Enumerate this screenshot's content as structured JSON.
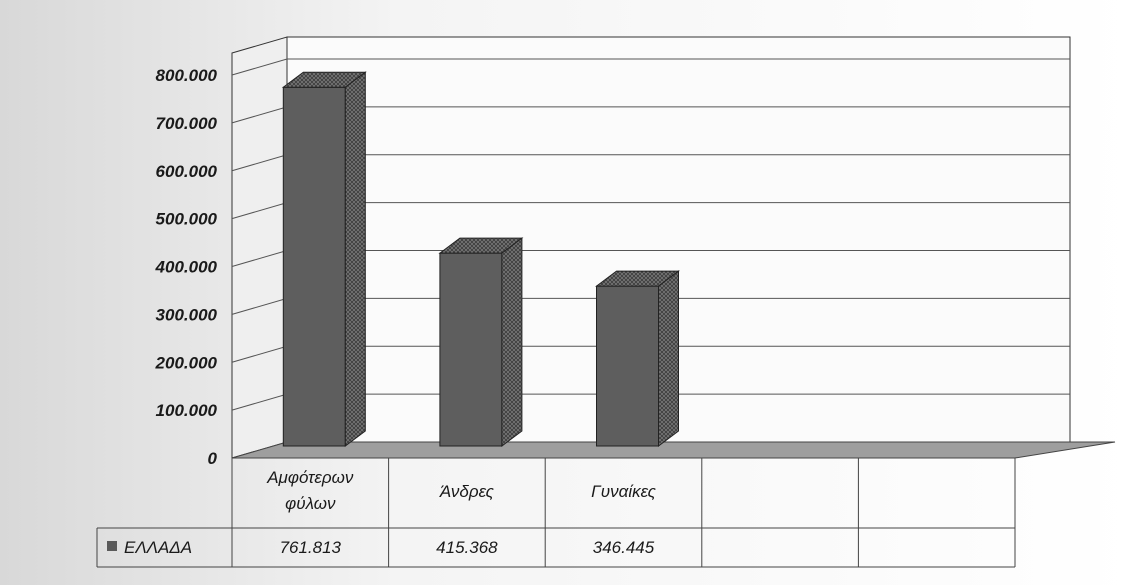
{
  "chart_data": {
    "type": "bar",
    "categories": [
      "Αμφότερων φύλων",
      "Άνδρες",
      "Γυναίκες",
      "",
      ""
    ],
    "series": [
      {
        "name": "ΕΛΛΑΔΑ",
        "values": [
          761813,
          415368,
          346445,
          null,
          null
        ],
        "color": "#5a5a5a"
      }
    ],
    "ylim": [
      0,
      800000
    ],
    "yticks": [
      0,
      100000,
      200000,
      300000,
      400000,
      500000,
      600000,
      700000,
      800000
    ],
    "ytick_labels": [
      "0",
      "100.000",
      "200.000",
      "300.000",
      "400.000",
      "500.000",
      "600.000",
      "700.000",
      "800.000"
    ],
    "data_table": {
      "row_label": "ΕΛΛΑΔΑ",
      "cells": [
        "761.813",
        "415.368",
        "346.445",
        "",
        ""
      ]
    },
    "grid": true,
    "legend": "data-table",
    "style": "3d-column"
  }
}
